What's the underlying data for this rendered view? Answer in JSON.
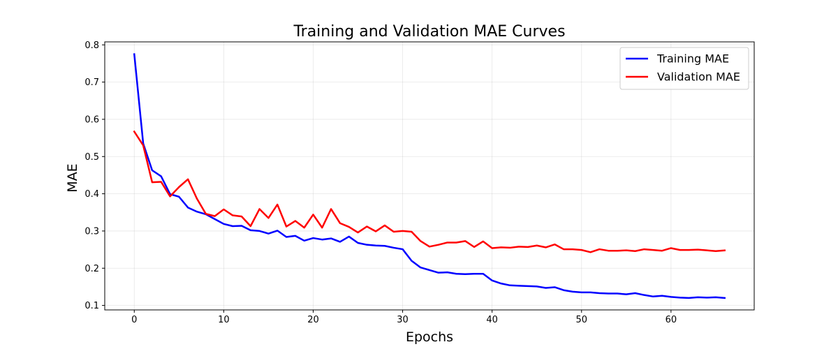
{
  "chart_data": {
    "type": "line",
    "title": "Training and Validation MAE Curves",
    "xlabel": "Epochs",
    "ylabel": "MAE",
    "xlim": [
      -3.3,
      69.3
    ],
    "ylim": [
      0.088,
      0.808
    ],
    "xticks": [
      0,
      10,
      20,
      30,
      40,
      50,
      60
    ],
    "yticks": [
      0.1,
      0.2,
      0.3,
      0.4,
      0.5,
      0.6,
      0.7,
      0.8
    ],
    "grid": true,
    "legend_position": "top-right",
    "x": [
      0,
      1,
      2,
      3,
      4,
      5,
      6,
      7,
      8,
      9,
      10,
      11,
      12,
      13,
      14,
      15,
      16,
      17,
      18,
      19,
      20,
      21,
      22,
      23,
      24,
      25,
      26,
      27,
      28,
      29,
      30,
      31,
      32,
      33,
      34,
      35,
      36,
      37,
      38,
      39,
      40,
      41,
      42,
      43,
      44,
      45,
      46,
      47,
      48,
      49,
      50,
      51,
      52,
      53,
      54,
      55,
      56,
      57,
      58,
      59,
      60,
      61,
      62,
      63,
      64,
      65,
      66
    ],
    "series": [
      {
        "name": "Training MAE",
        "color": "#0000ff",
        "values": [
          0.775,
          0.535,
          0.463,
          0.447,
          0.399,
          0.392,
          0.363,
          0.352,
          0.345,
          0.332,
          0.319,
          0.313,
          0.314,
          0.302,
          0.3,
          0.293,
          0.301,
          0.284,
          0.287,
          0.274,
          0.281,
          0.277,
          0.28,
          0.271,
          0.285,
          0.268,
          0.263,
          0.261,
          0.26,
          0.255,
          0.251,
          0.22,
          0.202,
          0.195,
          0.188,
          0.189,
          0.185,
          0.184,
          0.185,
          0.185,
          0.167,
          0.159,
          0.154,
          0.153,
          0.152,
          0.151,
          0.147,
          0.149,
          0.141,
          0.137,
          0.135,
          0.135,
          0.133,
          0.132,
          0.132,
          0.13,
          0.133,
          0.128,
          0.124,
          0.126,
          0.123,
          0.121,
          0.12,
          0.122,
          0.121,
          0.122,
          0.12
        ]
      },
      {
        "name": "Validation MAE",
        "color": "#ff0000",
        "values": [
          0.567,
          0.53,
          0.431,
          0.432,
          0.393,
          0.418,
          0.439,
          0.387,
          0.346,
          0.34,
          0.358,
          0.342,
          0.339,
          0.313,
          0.359,
          0.335,
          0.371,
          0.312,
          0.327,
          0.309,
          0.344,
          0.309,
          0.359,
          0.321,
          0.311,
          0.296,
          0.312,
          0.299,
          0.315,
          0.298,
          0.3,
          0.298,
          0.273,
          0.258,
          0.263,
          0.269,
          0.269,
          0.273,
          0.257,
          0.272,
          0.254,
          0.256,
          0.255,
          0.258,
          0.257,
          0.261,
          0.256,
          0.264,
          0.251,
          0.251,
          0.249,
          0.243,
          0.251,
          0.247,
          0.247,
          0.248,
          0.246,
          0.251,
          0.249,
          0.247,
          0.254,
          0.249,
          0.249,
          0.25,
          0.248,
          0.246,
          0.248
        ]
      }
    ]
  }
}
